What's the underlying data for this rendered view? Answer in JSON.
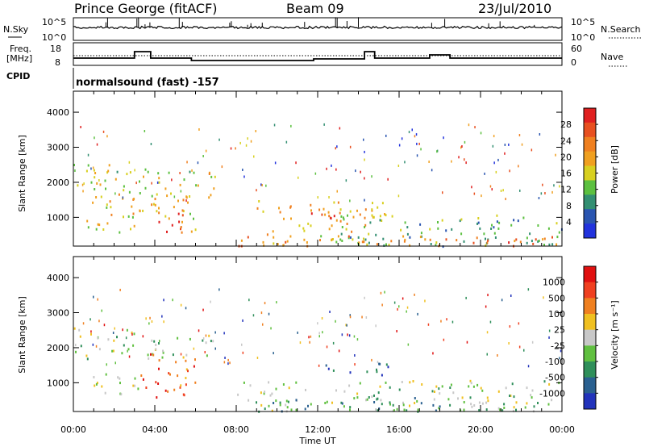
{
  "header": {
    "station": "Prince George (fitACF)",
    "beam": "Beam 09",
    "date": "23/Jul/2010"
  },
  "strip": {
    "nsky_label": "N.Sky",
    "nsky_ticks": [
      "10^5",
      "10^0"
    ],
    "nsearch_label": "N.Search",
    "nsearch_ticks": [
      "10^5",
      "10^0"
    ],
    "freq_label_1": "Freq.",
    "freq_label_2": "[MHz]",
    "freq_ticks": [
      "18",
      "8"
    ],
    "nave_label": "Nave",
    "nave_ticks": [
      "60",
      "0"
    ],
    "cpid_label": "CPID",
    "cpid_text": "normalsound (fast) -157"
  },
  "chart_data": [
    {
      "type": "heatmap",
      "name": "power",
      "ylabel": "Slant Range [km]",
      "ylim": [
        180,
        4600
      ],
      "yticks": [
        "1000",
        "2000",
        "3000",
        "4000"
      ],
      "xticks": [
        "00:00",
        "04:00",
        "08:00",
        "12:00",
        "16:00",
        "20:00",
        "00:00"
      ],
      "colorbar_label": "Power [dB]",
      "colorbar_ticks": [
        "4",
        "8",
        "12",
        "16",
        "20",
        "24",
        "28"
      ],
      "colorbar_colors": [
        "#2233dd",
        "#2a55b0",
        "#338f72",
        "#5cc040",
        "#d8d020",
        "#f0a020",
        "#f08020",
        "#e85020",
        "#e02020"
      ],
      "regions": [
        {
          "x0": 0.0,
          "x1": 3.0,
          "y0": 1700,
          "y1": 2600,
          "level": 0.45
        },
        {
          "x0": 3.2,
          "x1": 7.1,
          "y0": 1500,
          "y1": 2400,
          "level": 0.5
        },
        {
          "x0": 0.5,
          "x1": 6.0,
          "y0": 600,
          "y1": 1700,
          "level": 0.55
        },
        {
          "x0": 4.0,
          "x1": 5.4,
          "y0": 600,
          "y1": 1500,
          "level": 0.85
        },
        {
          "x0": 9.0,
          "x1": 15.5,
          "y0": 200,
          "y1": 1500,
          "level": 0.6
        },
        {
          "x0": 11.0,
          "x1": 13.2,
          "y0": 800,
          "y1": 1200,
          "level": 0.9
        },
        {
          "x0": 13.0,
          "x1": 24.0,
          "y0": 200,
          "y1": 1100,
          "level": 0.35
        },
        {
          "x0": 8.0,
          "x1": 24.0,
          "y0": 200,
          "y1": 500,
          "level": 0.75
        }
      ]
    },
    {
      "type": "heatmap",
      "name": "velocity",
      "ylabel": "Slant Range [km]",
      "ylim": [
        180,
        4600
      ],
      "yticks": [
        "1000",
        "2000",
        "3000",
        "4000"
      ],
      "xticks": [
        "00:00",
        "04:00",
        "08:00",
        "12:00",
        "16:00",
        "20:00",
        "00:00"
      ],
      "xlabel": "Time UT",
      "colorbar_label": "Velocity [m s⁻¹]",
      "colorbar_ticks": [
        "1000",
        "500",
        "100",
        "25",
        "-25",
        "-100",
        "-500",
        "-1000"
      ],
      "colorbar_colors": [
        "#2233bb",
        "#2a6090",
        "#2f8f5a",
        "#60c040",
        "#c8c8c8",
        "#f0c020",
        "#f08020",
        "#f04020",
        "#e01010"
      ],
      "regions": [
        {
          "x0": 0.0,
          "x1": 3.0,
          "y0": 1700,
          "y1": 2600,
          "level": 0.45
        },
        {
          "x0": 3.2,
          "x1": 7.1,
          "y0": 1700,
          "y1": 2400,
          "level": 0.45
        },
        {
          "x0": 3.3,
          "x1": 6.0,
          "y0": 600,
          "y1": 1900,
          "level": 0.8
        },
        {
          "x0": 0.5,
          "x1": 3.2,
          "y0": 600,
          "y1": 1300,
          "level": 0.45
        },
        {
          "x0": 12.0,
          "x1": 15.5,
          "y0": 1200,
          "y1": 1600,
          "level": 0.15
        },
        {
          "x0": 8.0,
          "x1": 24.0,
          "y0": 200,
          "y1": 1100,
          "level": 0.45
        },
        {
          "x0": 8.0,
          "x1": 20.0,
          "y0": 200,
          "y1": 600,
          "level": 0.3
        }
      ]
    }
  ]
}
